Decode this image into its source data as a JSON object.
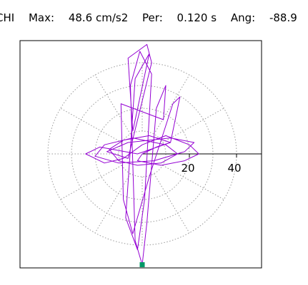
{
  "header": {
    "station": "CHI",
    "max_label": "Max:",
    "max_value": "48.6 cm/s2",
    "per_label": "Per:",
    "per_value": "0.120 s",
    "ang_label": "Ang:",
    "ang_value": "-88.9"
  },
  "chart_data": {
    "type": "polar-trace",
    "title": "",
    "xlabel": "",
    "ylabel": "",
    "rings": [
      20,
      40
    ],
    "extra_rings": [
      10,
      30
    ],
    "spoke_every_deg": 30,
    "tick_labels": [
      "20",
      "40"
    ],
    "axis_limit": 52,
    "trace_color": "#9400d3",
    "marker_color": "#009966",
    "grid_color": "#999999",
    "max_amplitude": 48.6,
    "max_angle_deg": -88.9,
    "marker": {
      "x": 0.0,
      "y": -48.6
    },
    "trace_points": [
      [
        0,
        0
      ],
      [
        6,
        3
      ],
      [
        12,
        5
      ],
      [
        3,
        8
      ],
      [
        -8,
        6
      ],
      [
        -14,
        2
      ],
      [
        -10,
        -3
      ],
      [
        -2,
        -5
      ],
      [
        8,
        -4
      ],
      [
        15,
        0
      ],
      [
        10,
        4
      ],
      [
        -4,
        7
      ],
      [
        -16,
        4
      ],
      [
        -20,
        -1
      ],
      [
        -10,
        -4
      ],
      [
        5,
        -3
      ],
      [
        18,
        1
      ],
      [
        22,
        5
      ],
      [
        12,
        7
      ],
      [
        -6,
        5
      ],
      [
        -15,
        1
      ],
      [
        -6,
        -2
      ],
      [
        4,
        40
      ],
      [
        2,
        48
      ],
      [
        -6,
        42
      ],
      [
        -4,
        10
      ],
      [
        3,
        44
      ],
      [
        -3,
        33
      ],
      [
        -7,
        -28
      ],
      [
        -2,
        -42
      ],
      [
        1,
        -20
      ],
      [
        4,
        35
      ],
      [
        -1,
        45
      ],
      [
        -5,
        30
      ],
      [
        -3,
        -38
      ],
      [
        0,
        -48.6
      ],
      [
        2,
        -30
      ],
      [
        6,
        20
      ],
      [
        10,
        30
      ],
      [
        9,
        15
      ],
      [
        -9,
        22
      ],
      [
        -8,
        -20
      ],
      [
        -4,
        -35
      ],
      [
        3,
        -10
      ],
      [
        13,
        22
      ],
      [
        16,
        25
      ],
      [
        12,
        5
      ],
      [
        -2,
        0
      ],
      [
        -18,
        3
      ],
      [
        -24,
        0
      ],
      [
        -16,
        -4
      ],
      [
        -8,
        -2
      ],
      [
        0,
        4
      ],
      [
        10,
        8
      ],
      [
        20,
        4
      ],
      [
        24,
        0
      ],
      [
        18,
        -3
      ],
      [
        8,
        -5
      ],
      [
        -2,
        -3
      ],
      [
        0,
        0
      ]
    ]
  }
}
